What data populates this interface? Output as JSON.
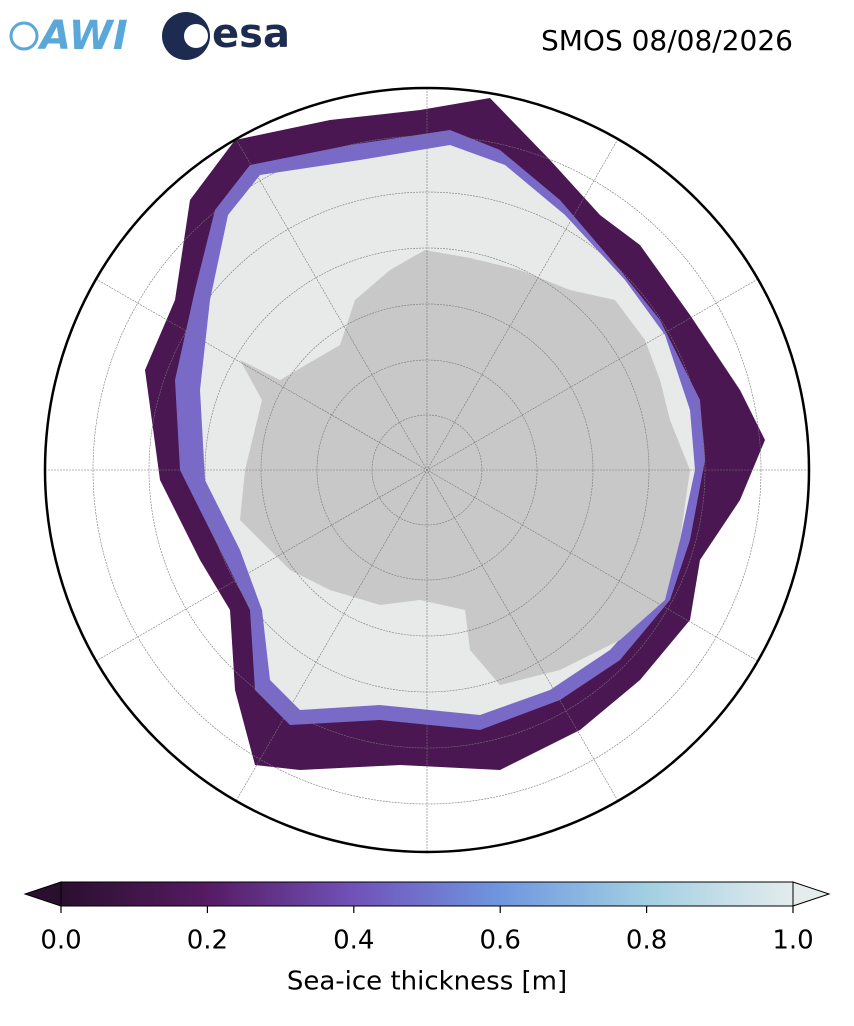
{
  "logos": {
    "awi": "AWI",
    "esa": "esa"
  },
  "title": "SMOS 08/08/2026",
  "colorbar": {
    "label": "Sea-ice thickness [m]",
    "lim": [
      0,
      1
    ],
    "ticks": [
      {
        "value": 0,
        "label": "0.0"
      },
      {
        "value": 0.2,
        "label": "0.2"
      },
      {
        "value": 0.4,
        "label": "0.4"
      },
      {
        "value": 0.6,
        "label": "0.6"
      },
      {
        "value": 0.8,
        "label": "0.8"
      },
      {
        "value": 1,
        "label": "1.0"
      }
    ]
  }
}
